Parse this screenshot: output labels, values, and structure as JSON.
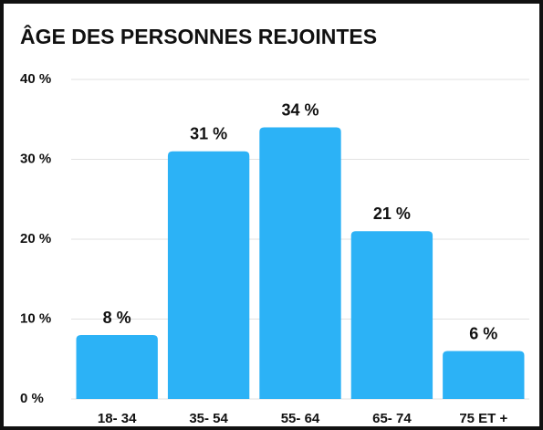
{
  "chart_data": {
    "type": "bar",
    "title": "ÂGE DES PERSONNES REJOINTES",
    "categories": [
      "18- 34",
      "35- 54",
      "55- 64",
      "65- 74",
      "75 ET +"
    ],
    "values": [
      8,
      31,
      34,
      21,
      6
    ],
    "value_labels": [
      "8 %",
      "31 %",
      "34 %",
      "21 %",
      "6 %"
    ],
    "color": "#2cb2f6",
    "ylim": [
      0,
      40
    ],
    "yticks": [
      {
        "value": 0,
        "label": "0 %"
      },
      {
        "value": 10,
        "label": "10 %"
      },
      {
        "value": 20,
        "label": "20 %"
      },
      {
        "value": 30,
        "label": "30 %"
      },
      {
        "value": 40,
        "label": "40 %"
      }
    ],
    "grid": true
  }
}
